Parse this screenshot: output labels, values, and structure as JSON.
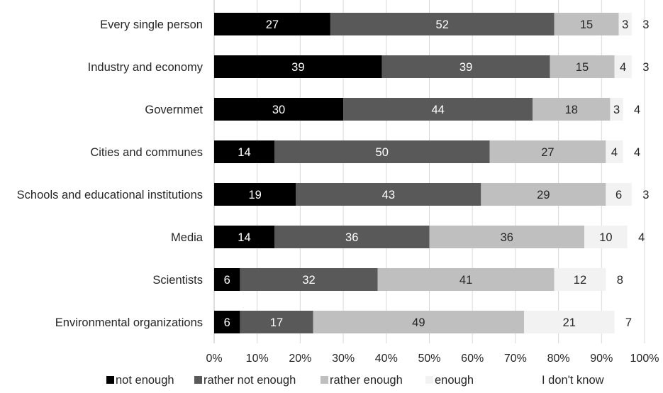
{
  "chart_data": {
    "type": "bar",
    "orientation": "horizontal",
    "stacked": true,
    "title": "",
    "xlabel": "",
    "ylabel": "",
    "xlim": [
      0,
      100
    ],
    "tick_step": 10,
    "tick_suffix": "%",
    "grid": true,
    "legend_position": "bottom",
    "categories": [
      "Every single person",
      "Industry and economy",
      "Governmet",
      "Cities and communes",
      "Schools and educational institutions",
      "Media",
      "Scientists",
      "Environmental organizations"
    ],
    "series": [
      {
        "name": "not enough",
        "color": "#000000",
        "label_color": "#ffffff",
        "values": [
          27,
          39,
          30,
          14,
          19,
          14,
          6,
          6
        ]
      },
      {
        "name": "rather not enough",
        "color": "#595959",
        "label_color": "#ffffff",
        "values": [
          52,
          39,
          44,
          50,
          43,
          36,
          32,
          17
        ]
      },
      {
        "name": "rather enough",
        "color": "#bfbfbf",
        "label_color": "#262626",
        "values": [
          15,
          15,
          18,
          27,
          29,
          36,
          41,
          49
        ]
      },
      {
        "name": "enough",
        "color": "#f2f2f2",
        "label_color": "#262626",
        "values": [
          3,
          4,
          3,
          4,
          6,
          10,
          12,
          21
        ]
      },
      {
        "name": "I don't know",
        "color": "#ffffff",
        "label_color": "#262626",
        "values": [
          3,
          3,
          4,
          4,
          3,
          4,
          8,
          7
        ]
      }
    ]
  }
}
